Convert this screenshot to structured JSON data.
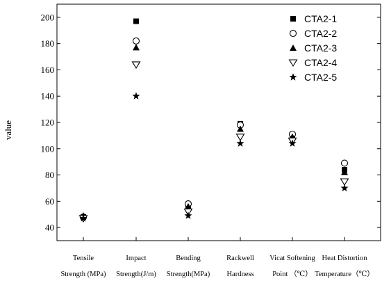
{
  "chart_data": {
    "type": "scatter",
    "title": "",
    "xlabel": "",
    "ylabel": "value",
    "ylim": [
      30,
      210
    ],
    "yticks": [
      40,
      60,
      80,
      100,
      120,
      140,
      160,
      180,
      200
    ],
    "grid": false,
    "legend_position": "top-right",
    "categories": [
      [
        "Tensile",
        "Strength (MPa)"
      ],
      [
        "Impact",
        "Strength(J/m)"
      ],
      [
        "Bending",
        "Strength(MPa)"
      ],
      [
        "Rackwell",
        "Hardness"
      ],
      [
        "Vicat Softening",
        "Point （℃）"
      ],
      [
        "Heat Distortion",
        "Temperature（℃）"
      ]
    ],
    "series": [
      {
        "name": "CTA2-1",
        "marker": "filled-square",
        "values": [
          48,
          197,
          57,
          119,
          108,
          84
        ]
      },
      {
        "name": "CTA2-2",
        "marker": "open-circle",
        "values": [
          48,
          182,
          58,
          118,
          111,
          89
        ]
      },
      {
        "name": "CTA2-3",
        "marker": "filled-triangle",
        "values": [
          49,
          177,
          56,
          115,
          109,
          82
        ]
      },
      {
        "name": "CTA2-4",
        "marker": "open-triangle-down",
        "values": [
          47,
          164,
          52,
          109,
          106,
          75
        ]
      },
      {
        "name": "CTA2-5",
        "marker": "filled-star",
        "values": [
          47,
          140,
          49,
          104,
          104,
          70
        ]
      }
    ]
  }
}
